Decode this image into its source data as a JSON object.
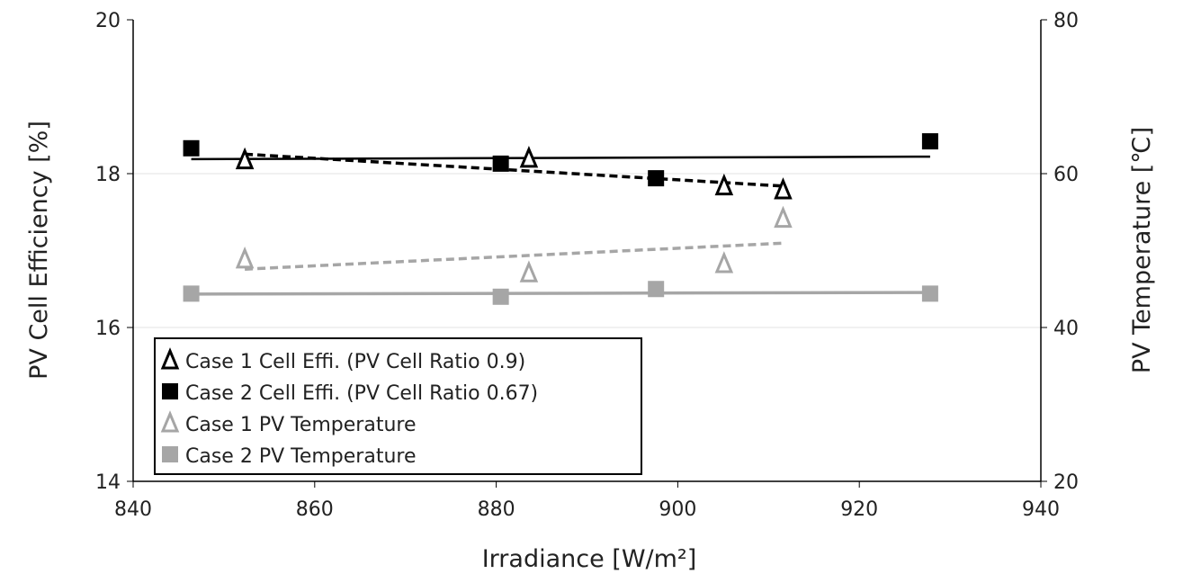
{
  "chart_data": {
    "type": "scatter",
    "xlabel": "Irradiance [W/m²]",
    "ylabel": "PV Cell Efficiency [%]",
    "y2label": "PV Temperature [℃]",
    "xlim": [
      840,
      940
    ],
    "ylim": [
      14,
      20
    ],
    "y2lim": [
      20,
      80
    ],
    "xticks": [
      "840",
      "860",
      "880",
      "900",
      "920",
      "940"
    ],
    "yticks": [
      "14",
      "16",
      "18",
      "20"
    ],
    "y2ticks": [
      "20",
      "40",
      "60",
      "80"
    ],
    "legend_position": "bottom-left",
    "series": [
      {
        "name": "Case 1 Cell Effi. (PV Cell Ratio 0.9)",
        "axis": "left",
        "marker": "triangle-open",
        "color": "#000000",
        "trend": "dashed",
        "x": [
          852.3,
          883.6,
          905.1,
          911.6
        ],
        "y": [
          18.18,
          18.2,
          17.84,
          17.79
        ]
      },
      {
        "name": "Case 2 Cell Effi. (PV Cell Ratio 0.67)",
        "axis": "left",
        "marker": "square",
        "color": "#000000",
        "trend": "solid",
        "x": [
          846.4,
          880.5,
          897.6,
          927.8
        ],
        "y": [
          18.33,
          18.13,
          17.94,
          18.42
        ]
      },
      {
        "name": "Case 1 PV Temperature",
        "axis": "right",
        "marker": "triangle-open",
        "color": "#a6a6a6",
        "trend": "dashed",
        "x": [
          852.3,
          883.6,
          905.1,
          911.6
        ],
        "y": [
          48.9,
          47.1,
          48.3,
          54.2
        ]
      },
      {
        "name": "Case 2 PV Temperature",
        "axis": "right",
        "marker": "square",
        "color": "#a6a6a6",
        "trend": "solid",
        "x": [
          846.4,
          880.5,
          897.6,
          927.8
        ],
        "y": [
          44.4,
          44.0,
          45.0,
          44.4
        ]
      }
    ]
  }
}
